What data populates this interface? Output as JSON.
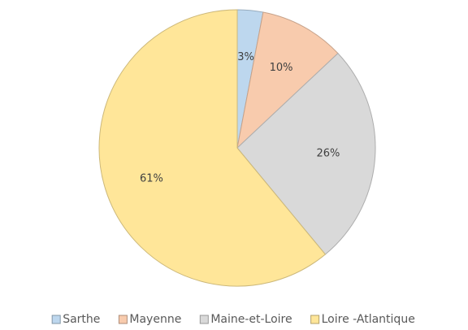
{
  "chart_data": {
    "type": "pie",
    "categories": [
      "Sarthe",
      "Mayenne",
      "Maine-et-Loire",
      "Loire -Atlantique"
    ],
    "values": [
      3,
      10,
      26,
      61
    ],
    "value_labels": [
      "3%",
      "10%",
      "26%",
      "61%"
    ],
    "colors": [
      "#bdd7ee",
      "#f8cbad",
      "#d9d9d9",
      "#ffe699"
    ],
    "legend": "bottom"
  }
}
